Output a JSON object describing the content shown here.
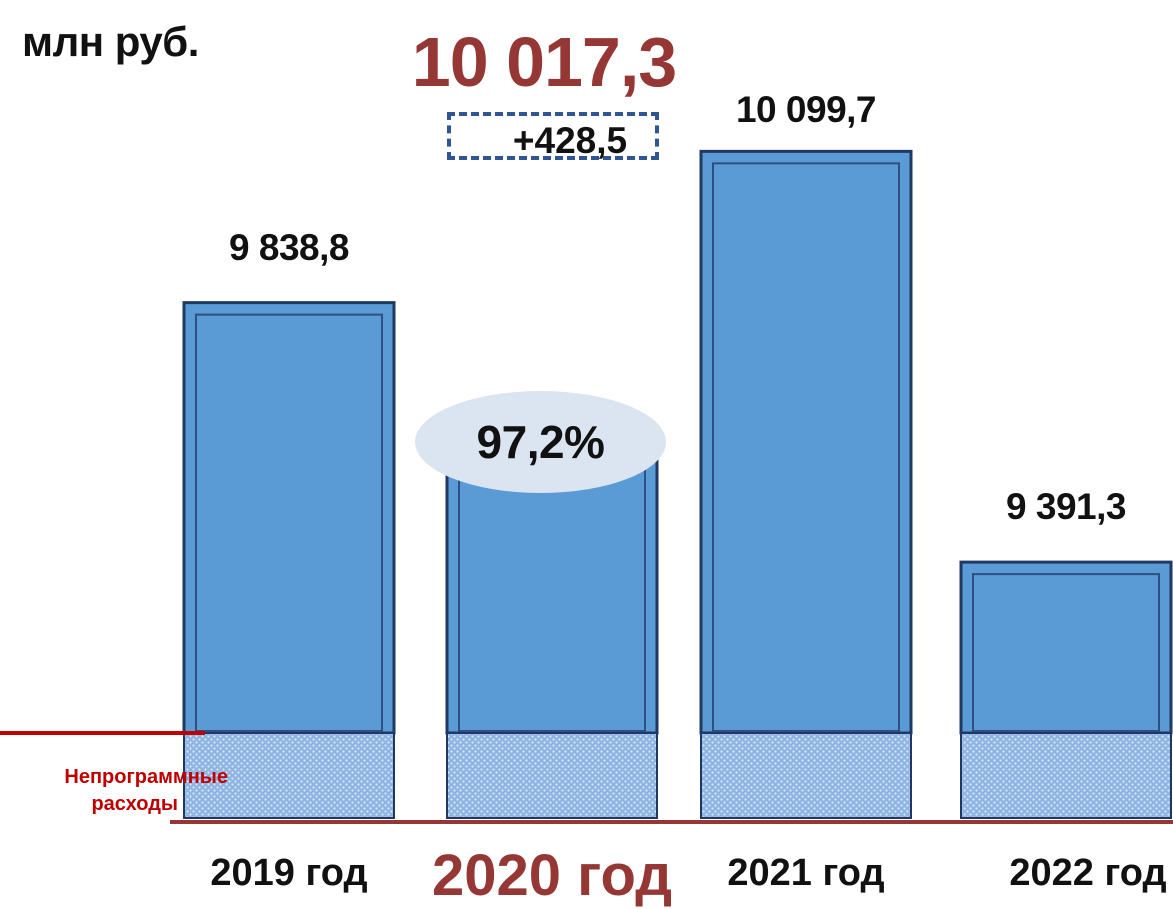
{
  "unit_label": "млн руб.",
  "highlight": {
    "total_label": "10 017,3",
    "increase_label": "+428,5",
    "percent_label": "97,2%",
    "color": "#953735"
  },
  "nonprogram_label_line1": "Непрограммные",
  "nonprogram_label_line2": "расходы",
  "colors": {
    "bar": "#5b9bd5",
    "bar_edge": "#1f3864",
    "baseline": "#c00000",
    "increase_box": "#2f5597"
  },
  "chart_data": {
    "type": "bar",
    "categories": [
      "2019 год",
      "2020 год",
      "2021 год",
      "2022 год"
    ],
    "values": [
      9838.8,
      9588.8,
      10099.7,
      9391.3
    ],
    "value_labels": [
      "9 838,8",
      "",
      "10 099,7",
      "9 391,3"
    ],
    "highlighted_category": "2020 год",
    "ylim": [
      8950,
      10240
    ],
    "title": "",
    "xlabel": "",
    "ylabel": "млн руб."
  }
}
